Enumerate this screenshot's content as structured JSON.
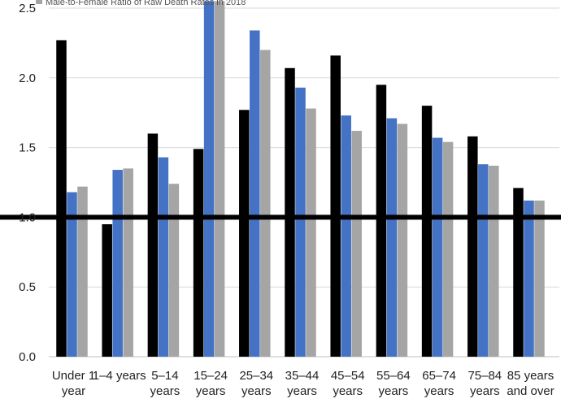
{
  "chart_data": {
    "type": "bar",
    "ylim": [
      0,
      2.5
    ],
    "yticks": [
      "0.0",
      "0.5",
      "1.0",
      "1.5",
      "2.0",
      "2.5"
    ],
    "grid": true,
    "reference_line": 1.0,
    "categories": [
      [
        "Under 1",
        "year"
      ],
      [
        "1–4 years"
      ],
      [
        "5–14",
        "years"
      ],
      [
        "15–24",
        "years"
      ],
      [
        "25–34",
        "years"
      ],
      [
        "35–44",
        "years"
      ],
      [
        "45–54",
        "years"
      ],
      [
        "55–64",
        "years"
      ],
      [
        "65–74",
        "years"
      ],
      [
        "75–84",
        "years"
      ],
      [
        "85 years",
        "and over"
      ]
    ],
    "series": [
      {
        "color": "#000000",
        "values": [
          2.27,
          0.95,
          1.6,
          1.49,
          1.77,
          2.07,
          2.16,
          1.95,
          1.8,
          1.58,
          1.21
        ]
      },
      {
        "color": "#4472c4",
        "values": [
          1.18,
          1.34,
          1.43,
          2.55,
          2.34,
          1.93,
          1.73,
          1.71,
          1.57,
          1.38,
          1.12
        ]
      },
      {
        "name": "Male-to-Female Ratio of Raw Death Rates in 2018",
        "color": "#a5a5a5",
        "values": [
          1.22,
          1.35,
          1.24,
          2.55,
          2.2,
          1.78,
          1.62,
          1.67,
          1.54,
          1.37,
          1.12
        ]
      }
    ],
    "legend": {
      "position": "top",
      "visible_entry": "Male-to-Female Ratio of Raw Death Rates in 2018"
    }
  }
}
